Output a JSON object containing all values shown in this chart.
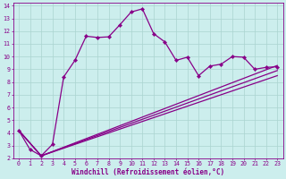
{
  "xlabel": "Windchill (Refroidissement éolien,°C)",
  "bg_color": "#cceeed",
  "grid_color": "#aad4d0",
  "line_color": "#880088",
  "xlim_min": -0.5,
  "xlim_max": 23.5,
  "ylim_min": 2.0,
  "ylim_max": 14.2,
  "xticks": [
    0,
    1,
    2,
    3,
    4,
    5,
    6,
    7,
    8,
    9,
    10,
    11,
    12,
    13,
    14,
    15,
    16,
    17,
    18,
    19,
    20,
    21,
    22,
    23
  ],
  "yticks": [
    2,
    3,
    4,
    5,
    6,
    7,
    8,
    9,
    10,
    11,
    12,
    13,
    14
  ],
  "curve_x": [
    0,
    1,
    2,
    3,
    4,
    5,
    6,
    7,
    8,
    9,
    10,
    11,
    12,
    13,
    14,
    15,
    16,
    17,
    18,
    19,
    20,
    21,
    22,
    23
  ],
  "curve_y": [
    4.2,
    2.7,
    2.2,
    3.1,
    8.4,
    9.7,
    11.6,
    11.5,
    11.55,
    12.5,
    13.5,
    13.75,
    11.8,
    11.15,
    9.7,
    9.95,
    8.5,
    9.25,
    9.4,
    10.0,
    9.95,
    9.0,
    9.15,
    9.2
  ],
  "line1_x": [
    0,
    2,
    23
  ],
  "line1_y": [
    4.2,
    2.2,
    8.5
  ],
  "line2_x": [
    0,
    2,
    23
  ],
  "line2_y": [
    4.2,
    2.2,
    8.9
  ],
  "line3_x": [
    0,
    2,
    23
  ],
  "line3_y": [
    4.2,
    2.2,
    9.3
  ],
  "marker_style": "D",
  "marker_size": 2.2,
  "line_width": 0.9,
  "tick_fontsize": 4.8,
  "label_fontsize": 5.5
}
